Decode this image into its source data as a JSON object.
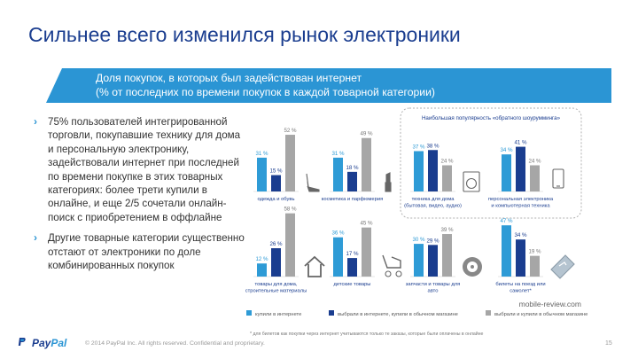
{
  "slide": {
    "title": "Сильнее всего изменился рынок электроники",
    "banner_line1": "Доля покупок, в которых был задействован интернет",
    "banner_line2": "(% от последних по времени покупок в каждой товарной категории)",
    "bullets": [
      "75% пользователей интегрированной торговли, покупавшие технику для дома и персональную электронику, задействовали интернет при последней по времени покупке в этих товарных категориях: более трети купили в онлайне, и еще 2/5 сочетали онлайн-поиск с приобретением в оффлайне",
      "Другие товарные категории существенно отстают от электроники по доле комбинированных покупок"
    ],
    "showrooming_box_title": "Наибольшая популярность «обратного шоурумминга»",
    "footnote": "* для билетов как покупки через интернет учитываются только те заказы, которые были оплачены в онлайне",
    "footer_brand_a": "Pay",
    "footer_brand_b": "Pal",
    "footer_copyright": "© 2014 PayPal Inc. All rights reserved. Confidential and proprietary.",
    "page_number": "15",
    "watermark": "mobile-review.com"
  },
  "colors": {
    "title": "#1a3d8f",
    "banner": "#2b95d4",
    "series_light_blue": "#2e9bd6",
    "series_dark_blue": "#1a3d8f",
    "series_gray": "#a6a6a6"
  },
  "chart_data": {
    "type": "bar",
    "series": [
      {
        "name": "купили в интернете",
        "color": "#2e9bd6"
      },
      {
        "name": "выбрали в интернете, купили в обычном магазине",
        "color": "#1a3d8f"
      },
      {
        "name": "выбрали и купили в обычном магазине",
        "color": "#a6a6a6"
      }
    ],
    "value_suffix": " %",
    "groups": [
      {
        "label_lines": [
          "одежда и обувь"
        ],
        "values": [
          31,
          15,
          52
        ],
        "icon": "high-heel-shoe-icon"
      },
      {
        "label_lines": [
          "косметика и парфюмерия"
        ],
        "values": [
          31,
          18,
          49
        ],
        "icon": "lipstick-icon"
      },
      {
        "label_lines": [
          "техника для дома",
          "(бытовая, видео, аудио)"
        ],
        "values": [
          37,
          38,
          24
        ],
        "icon": "washing-machine-icon"
      },
      {
        "label_lines": [
          "персональная электроника",
          "и компьютерная техника"
        ],
        "values": [
          34,
          41,
          24
        ],
        "icon": "smartphone-icon"
      },
      {
        "label_lines": [
          "товары для дома,",
          "строительные материалы"
        ],
        "values": [
          12,
          26,
          58
        ],
        "icon": "house-icon"
      },
      {
        "label_lines": [
          "детские товары"
        ],
        "values": [
          36,
          17,
          45
        ],
        "icon": "stroller-icon"
      },
      {
        "label_lines": [
          "запчасти и товары для",
          "авто"
        ],
        "values": [
          30,
          29,
          39
        ],
        "icon": "wheel-icon"
      },
      {
        "label_lines": [
          "билеты на поезд или",
          "самолет*"
        ],
        "values": [
          47,
          34,
          19
        ],
        "icon": "ticket-icon"
      }
    ]
  }
}
